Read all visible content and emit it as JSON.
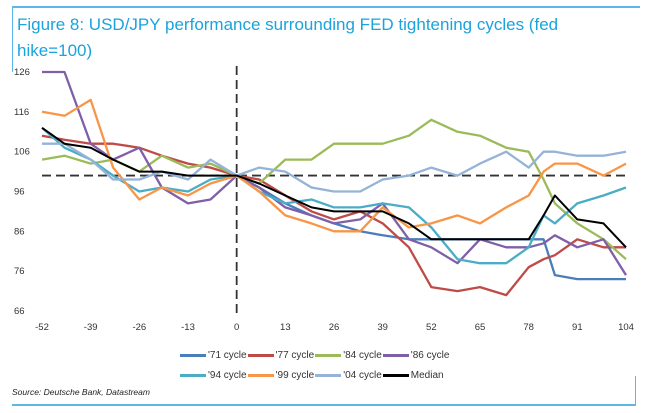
{
  "chart_data": {
    "type": "line",
    "title": "Figure 8: USD/JPY performance surrounding FED tightening cycles (fed hike=100)",
    "xlabel": "",
    "ylabel": "",
    "xlim": [
      -52,
      104
    ],
    "ylim": [
      66,
      126
    ],
    "x_ticks": [
      "-52",
      "-39",
      "-26",
      "-13",
      "0",
      "13",
      "26",
      "39",
      "52",
      "65",
      "78",
      "91",
      "104"
    ],
    "y_ticks": [
      "66",
      "76",
      "86",
      "96",
      "106",
      "116",
      "126"
    ],
    "reference_lines": {
      "horizontal": 100,
      "vertical": 0
    },
    "grid": false,
    "legend_position": "bottom",
    "x": [
      -52,
      -46,
      -39,
      -33,
      -26,
      -20,
      -13,
      -7,
      0,
      6,
      13,
      20,
      26,
      33,
      39,
      46,
      52,
      59,
      65,
      72,
      78,
      82,
      85,
      91,
      98,
      104
    ],
    "series": [
      {
        "name": "'71 cycle",
        "color": "#4a7ebb",
        "values": [
          null,
          null,
          null,
          null,
          null,
          null,
          null,
          null,
          100,
          97,
          93,
          90,
          88,
          86,
          85,
          84,
          84,
          84,
          84,
          84,
          84,
          84,
          75,
          74,
          74,
          74
        ]
      },
      {
        "name": "'77 cycle",
        "color": "#be4b48",
        "values": [
          110,
          109,
          108,
          108,
          107,
          105,
          103,
          102,
          100,
          99,
          95,
          91,
          89,
          91,
          88,
          82,
          72,
          71,
          72,
          70,
          77,
          79,
          80,
          84,
          82,
          82
        ]
      },
      {
        "name": "'84 cycle",
        "color": "#9bbb59",
        "values": [
          104,
          105,
          103,
          104,
          101,
          105,
          102,
          103,
          100,
          98,
          104,
          104,
          108,
          108,
          108,
          110,
          114,
          111,
          110,
          107,
          106,
          99,
          93,
          88,
          84,
          79
        ]
      },
      {
        "name": "'86 cycle",
        "color": "#7f5fa8",
        "values": [
          126,
          126,
          108,
          104,
          107,
          97,
          93,
          94,
          100,
          97,
          92,
          90,
          88,
          89,
          93,
          84,
          82,
          78,
          84,
          82,
          82,
          83,
          85,
          82,
          84,
          75
        ]
      },
      {
        "name": "'94 cycle",
        "color": "#4bacc6",
        "values": [
          112,
          107,
          104,
          100,
          96,
          97,
          96,
          99,
          100,
          96,
          93,
          94,
          92,
          92,
          93,
          92,
          87,
          79,
          78,
          78,
          82,
          90,
          88,
          93,
          95,
          97
        ]
      },
      {
        "name": "'99 cycle",
        "color": "#f79646",
        "values": [
          116,
          115,
          119,
          102,
          94,
          97,
          95,
          98,
          100,
          96,
          90,
          88,
          86,
          86,
          92,
          87,
          88,
          90,
          88,
          92,
          95,
          101,
          103,
          103,
          100,
          103
        ]
      },
      {
        "name": "'04 cycle",
        "color": "#95b3d7",
        "values": [
          108,
          108,
          104,
          99,
          99,
          101,
          99,
          104,
          100,
          102,
          101,
          97,
          96,
          96,
          99,
          100,
          102,
          100,
          103,
          106,
          102,
          106,
          106,
          105,
          105,
          106
        ]
      },
      {
        "name": "Median",
        "color": "#000000",
        "values": [
          112,
          108,
          107,
          104,
          101,
          101,
          100,
          100,
          100,
          98,
          95,
          92,
          91,
          91,
          91,
          88,
          84,
          84,
          84,
          84,
          84,
          90,
          95,
          89,
          88,
          82
        ]
      }
    ]
  },
  "legend_rows": [
    [
      0,
      1,
      2,
      3
    ],
    [
      4,
      5,
      6,
      7
    ]
  ],
  "source": "Source: Deutsche Bank, Datastream"
}
